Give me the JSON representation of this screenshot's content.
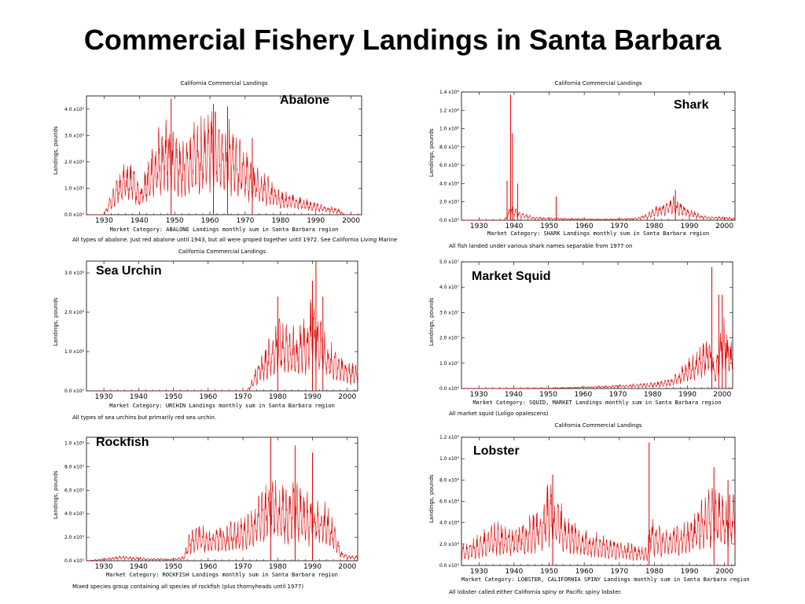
{
  "page": {
    "title": "Commercial Fishery Landings in Santa Barbara"
  },
  "chart_data": [
    {
      "id": "abalone",
      "type": "line",
      "title": "California Commercial Landings",
      "species_label": "Abalone",
      "market_category": "Market Category: ABALONE  Landings monthly sum in Santa Barbara region",
      "caption": "All types of abalone. Just red abalone until 1943, but all were groped together until 1972. See California Living Marine",
      "ylabel": "Landings, pounds",
      "xlim": [
        1925,
        2003
      ],
      "ylim": [
        0,
        450000
      ],
      "x_ticks": [
        "1930",
        "1940",
        "1950",
        "1960",
        "1970",
        "1980",
        "1990",
        "2000"
      ],
      "y_ticks": [
        {
          "value": 0,
          "label": "0.0 x10⁰"
        },
        {
          "value": 100000,
          "label": "1.0 x10⁵"
        },
        {
          "value": 200000,
          "label": "2.0 x10⁵"
        },
        {
          "value": 300000,
          "label": "3.0 x10⁵"
        },
        {
          "value": 400000,
          "label": "4.0 x10⁵"
        }
      ],
      "color": "#e00000",
      "series": [
        {
          "envelope_x": [
            1925,
            1930,
            1932,
            1935,
            1938,
            1940,
            1943,
            1945,
            1948,
            1950,
            1953,
            1955,
            1958,
            1960,
            1963,
            1965,
            1968,
            1970,
            1972,
            1975,
            1978,
            1980,
            1983,
            1985,
            1988,
            1990,
            1993,
            1995,
            1997,
            1998
          ],
          "envelope_y": [
            0,
            0,
            90000,
            200000,
            220000,
            120000,
            260000,
            320000,
            400000,
            330000,
            280000,
            350000,
            380000,
            410000,
            400000,
            390000,
            300000,
            270000,
            210000,
            180000,
            120000,
            100000,
            90000,
            80000,
            60000,
            50000,
            40000,
            30000,
            20000,
            0
          ],
          "spikes": [
            [
              1949,
              440000
            ],
            [
              1961,
              420000
            ],
            [
              1965,
              410000
            ],
            [
              1972,
              290000
            ]
          ]
        }
      ]
    },
    {
      "id": "shark",
      "type": "line",
      "title": "California Commercial Landings",
      "species_label": "Shark",
      "market_category": "Market Category: SHARK  Landings monthly sum in Santa Barbara region",
      "caption": "All fish landed under various shark names separable from 1977 on",
      "ylabel": "Landings, pounds",
      "xlim": [
        1925,
        2003
      ],
      "ylim": [
        0,
        1400000
      ],
      "x_ticks": [
        "1930",
        "1940",
        "1950",
        "1960",
        "1970",
        "1980",
        "1990",
        "2000"
      ],
      "y_ticks": [
        {
          "value": 0,
          "label": "0.0 x10⁰"
        },
        {
          "value": 200000,
          "label": "2.0 x10⁵"
        },
        {
          "value": 400000,
          "label": "4.0 x10⁵"
        },
        {
          "value": 600000,
          "label": "6.0 x10⁵"
        },
        {
          "value": 800000,
          "label": "8.0 x10⁵"
        },
        {
          "value": 1000000,
          "label": "1.0 x10⁶"
        },
        {
          "value": 1200000,
          "label": "1.2 x10⁶"
        },
        {
          "value": 1400000,
          "label": "1.4 x10⁶"
        }
      ],
      "color": "#e00000",
      "series": [
        {
          "envelope_x": [
            1925,
            1937,
            1938,
            1939,
            1940,
            1942,
            1944,
            1946,
            1950,
            1955,
            1960,
            1965,
            1970,
            1975,
            1978,
            1980,
            1983,
            1985,
            1987,
            1990,
            1993,
            1995,
            2000,
            2003
          ],
          "envelope_y": [
            0,
            0,
            60000,
            200000,
            150000,
            90000,
            60000,
            40000,
            30000,
            25000,
            20000,
            15000,
            20000,
            30000,
            80000,
            150000,
            220000,
            280000,
            230000,
            130000,
            70000,
            50000,
            40000,
            30000
          ],
          "spikes": [
            [
              1938,
              430000
            ],
            [
              1939,
              1370000
            ],
            [
              1939.5,
              950000
            ],
            [
              1941,
              400000
            ],
            [
              1952,
              260000
            ],
            [
              1986,
              330000
            ]
          ]
        }
      ]
    },
    {
      "id": "sea-urchin",
      "type": "line",
      "title": "California Commercial Landings",
      "species_label": "Sea Urchin",
      "market_category": "Market Category: URCHIN  Landings monthly sum in Santa Barbara region",
      "caption": "All types of sea urchins but primarily red sea urchin.",
      "ylabel": "Landings, pounds",
      "xlim": [
        1925,
        2003
      ],
      "ylim": [
        0,
        3300000
      ],
      "x_ticks": [
        "1930",
        "1940",
        "1950",
        "1960",
        "1970",
        "1980",
        "1990",
        "2000"
      ],
      "y_ticks": [
        {
          "value": 0,
          "label": "0.0 x10⁰"
        },
        {
          "value": 1000000,
          "label": "1.0 x10⁶"
        },
        {
          "value": 2000000,
          "label": "2.0 x10⁶"
        },
        {
          "value": 3000000,
          "label": "3.0 x10⁶"
        }
      ],
      "color": "#e00000",
      "series": [
        {
          "envelope_x": [
            1925,
            1971,
            1972,
            1974,
            1976,
            1978,
            1980,
            1982,
            1984,
            1986,
            1988,
            1990,
            1992,
            1994,
            1996,
            1998,
            2000,
            2003
          ],
          "envelope_y": [
            0,
            0,
            150000,
            700000,
            1100000,
            1500000,
            1900000,
            2000000,
            1700000,
            1600000,
            2000000,
            2600000,
            2200000,
            1500000,
            1200000,
            900000,
            800000,
            700000
          ],
          "spikes": [
            [
              1980,
              2400000
            ],
            [
              1990,
              2800000
            ],
            [
              1991,
              3300000
            ],
            [
              1993,
              2400000
            ]
          ]
        }
      ]
    },
    {
      "id": "market-squid",
      "type": "line",
      "title": "",
      "species_label": "Market Squid",
      "market_category": "Market Category: SQUID, MARKET  Landings monthly sum in Santa Barbara region",
      "caption": "All market squid (Loligo opalescens)",
      "ylabel": "Landings, pounds",
      "xlim": [
        1925,
        2003
      ],
      "ylim": [
        0,
        50000000
      ],
      "x_ticks": [
        "1930",
        "1940",
        "1950",
        "1960",
        "1970",
        "1980",
        "1990",
        "2000"
      ],
      "y_ticks": [
        {
          "value": 0,
          "label": "0.0 x10⁰"
        },
        {
          "value": 10000000,
          "label": "1.0 x10⁷"
        },
        {
          "value": 20000000,
          "label": "2.0 x10⁷"
        },
        {
          "value": 30000000,
          "label": "3.0 x10⁷"
        },
        {
          "value": 40000000,
          "label": "4.0 x10⁷"
        },
        {
          "value": 50000000,
          "label": "5.0 x10⁷"
        }
      ],
      "color": "#e00000",
      "series": [
        {
          "envelope_x": [
            1925,
            1950,
            1960,
            1970,
            1975,
            1980,
            1985,
            1988,
            1990,
            1992,
            1994,
            1996,
            1998,
            2000,
            2003
          ],
          "envelope_y": [
            0,
            200000,
            800000,
            1500000,
            2000000,
            2500000,
            4000000,
            8000000,
            12000000,
            15000000,
            20000000,
            25000000,
            10000000,
            30000000,
            20000000
          ],
          "spikes": [
            [
              1997,
              48000000
            ],
            [
              1999,
              37000000
            ],
            [
              2000,
              37000000
            ],
            [
              2001,
              18000000
            ]
          ]
        }
      ]
    },
    {
      "id": "rockfish",
      "type": "line",
      "title": "",
      "species_label": "Rockfish",
      "market_category": "Market Category: ROCKFISH  Landings monthly sum in Santa Barbara region",
      "caption": "Mixed species group containing all species of rockfish (plus thornyheads until 1977)",
      "ylabel": "Landings, pounds",
      "xlim": [
        1925,
        2003
      ],
      "ylim": [
        0,
        1050000
      ],
      "x_ticks": [
        "1930",
        "1940",
        "1950",
        "1960",
        "1970",
        "1980",
        "1990",
        "2000"
      ],
      "y_ticks": [
        {
          "value": 0,
          "label": "0.0 x10⁰"
        },
        {
          "value": 200000,
          "label": "2.0 x10⁵"
        },
        {
          "value": 400000,
          "label": "4.0 x10⁵"
        },
        {
          "value": 600000,
          "label": "6.0 x10⁵"
        },
        {
          "value": 800000,
          "label": "8.0 x10⁵"
        },
        {
          "value": 1000000,
          "label": "1.0 x10⁶"
        }
      ],
      "color": "#e00000",
      "series": [
        {
          "envelope_x": [
            1925,
            1930,
            1935,
            1940,
            1945,
            1950,
            1953,
            1954,
            1956,
            1960,
            1965,
            1970,
            1973,
            1975,
            1978,
            1980,
            1983,
            1985,
            1988,
            1990,
            1993,
            1995,
            1997,
            1998,
            2000,
            2003
          ],
          "envelope_y": [
            0,
            20000,
            50000,
            30000,
            20000,
            20000,
            40000,
            200000,
            350000,
            300000,
            320000,
            380000,
            480000,
            600000,
            750000,
            700000,
            650000,
            720000,
            620000,
            600000,
            550000,
            450000,
            300000,
            100000,
            60000,
            50000
          ],
          "spikes": [
            [
              1978,
              1050000
            ],
            [
              1985,
              980000
            ],
            [
              1990,
              920000
            ]
          ]
        }
      ]
    },
    {
      "id": "lobster",
      "type": "line",
      "title": "California Commercial Landings",
      "species_label": "Lobster",
      "market_category": "Market Category: LOBSTER, CALIFORNIA SPINY  Landings monthly sum in Santa Barbara region",
      "caption": "All lobster called either California spiny or Pacific spiny lobster.",
      "ylabel": "Landings, pounds",
      "xlim": [
        1925,
        2003
      ],
      "ylim": [
        0,
        120000
      ],
      "x_ticks": [
        "1930",
        "1940",
        "1950",
        "1960",
        "1970",
        "1980",
        "1990",
        "2000"
      ],
      "y_ticks": [
        {
          "value": 0,
          "label": "0.0 x10⁰"
        },
        {
          "value": 20000,
          "label": "2.0 x10⁴"
        },
        {
          "value": 40000,
          "label": "4.0 x10⁴"
        },
        {
          "value": 60000,
          "label": "6.0 x10⁴"
        },
        {
          "value": 80000,
          "label": "8.0 x10⁴"
        },
        {
          "value": 100000,
          "label": "1.0 x10⁵"
        },
        {
          "value": 120000,
          "label": "1.2 x10⁵"
        }
      ],
      "color": "#e00000",
      "series": [
        {
          "envelope_x": [
            1925,
            1930,
            1935,
            1940,
            1945,
            1948,
            1950,
            1952,
            1955,
            1960,
            1965,
            1970,
            1975,
            1978,
            1979,
            1980,
            1985,
            1990,
            1993,
            1995,
            1998,
            2000,
            2003
          ],
          "envelope_y": [
            20000,
            30000,
            45000,
            40000,
            50000,
            60000,
            85000,
            70000,
            50000,
            35000,
            30000,
            25000,
            20000,
            20000,
            60000,
            40000,
            40000,
            45000,
            60000,
            70000,
            80000,
            75000,
            70000
          ],
          "spikes": [
            [
              1951,
              85000
            ],
            [
              1978.5,
              115000
            ],
            [
              1997,
              92000
            ],
            [
              2001,
              80000
            ]
          ]
        }
      ]
    }
  ]
}
